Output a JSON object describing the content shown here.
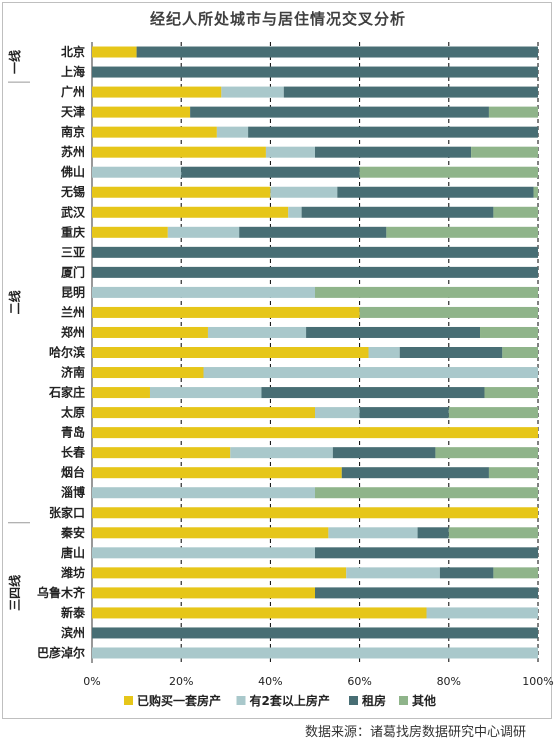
{
  "chart_data": {
    "type": "bar",
    "orientation": "horizontal",
    "stacked": true,
    "title": "经纪人所处城市与居住情况交叉分析",
    "source": "数据来源：诸葛找房数据研究中心调研",
    "xlim": [
      0,
      100
    ],
    "x_ticks": [
      "0%",
      "20%",
      "40%",
      "60%",
      "80%",
      "100%"
    ],
    "grid": true,
    "legend": "bottom",
    "groups": [
      {
        "label": "一线",
        "from": "北京",
        "to": "上海"
      },
      {
        "label": "二线",
        "from": "广州",
        "to": "张家口"
      },
      {
        "label": "三四线",
        "from": "秦安",
        "to": "巴彦淖尔"
      }
    ],
    "categories": [
      "北京",
      "上海",
      "广州",
      "天津",
      "南京",
      "苏州",
      "佛山",
      "无锡",
      "武汉",
      "重庆",
      "三亚",
      "厦门",
      "昆明",
      "兰州",
      "郑州",
      "哈尔滨",
      "济南",
      "石家庄",
      "太原",
      "青岛",
      "长春",
      "烟台",
      "淄博",
      "张家口",
      "秦安",
      "唐山",
      "潍坊",
      "乌鲁木齐",
      "新泰",
      "滨州",
      "巴彦淖尔"
    ],
    "series": [
      {
        "name": "已购买一套房产",
        "color": "#e6c619",
        "values": [
          10,
          0,
          29,
          22,
          28,
          39,
          0,
          40,
          44,
          17,
          0,
          0,
          0,
          60,
          26,
          62,
          25,
          13,
          50,
          100,
          31,
          56,
          0,
          100,
          53,
          0,
          57,
          50,
          75,
          0,
          0
        ]
      },
      {
        "name": "有2套以上房产",
        "color": "#a9c8cb",
        "values": [
          0,
          0,
          14,
          0,
          7,
          11,
          20,
          15,
          3,
          16,
          0,
          0,
          50,
          0,
          22,
          7,
          75,
          25,
          10,
          0,
          23,
          0,
          50,
          0,
          20,
          50,
          21,
          0,
          25,
          0,
          100
        ]
      },
      {
        "name": "租房",
        "color": "#486e74",
        "values": [
          90,
          100,
          57,
          67,
          65,
          35,
          40,
          44,
          43,
          33,
          100,
          100,
          0,
          0,
          39,
          23,
          0,
          50,
          20,
          0,
          23,
          33,
          0,
          0,
          7,
          50,
          12,
          50,
          0,
          100,
          0
        ]
      },
      {
        "name": "其他",
        "color": "#8fb48a",
        "values": [
          0,
          0,
          0,
          11,
          0,
          15,
          40,
          1,
          10,
          34,
          0,
          0,
          50,
          40,
          13,
          8,
          0,
          12,
          20,
          0,
          23,
          11,
          50,
          0,
          20,
          0,
          10,
          0,
          0,
          0,
          0
        ]
      }
    ]
  }
}
